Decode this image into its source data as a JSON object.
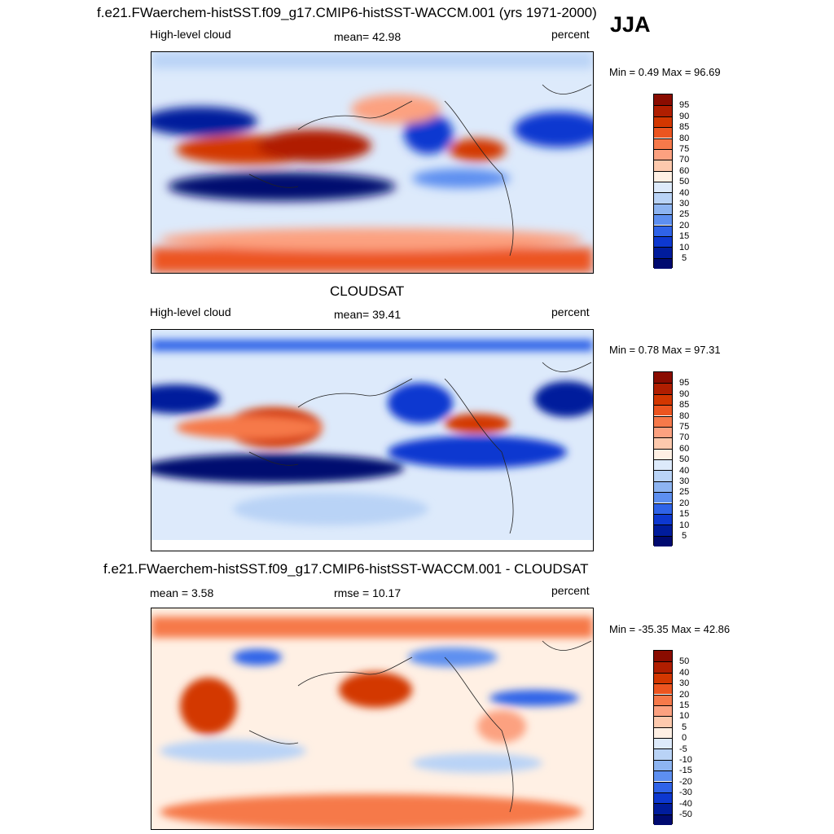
{
  "season": "JJA",
  "panels": [
    {
      "title": "f.e21.FWaerchem-histSST.f09_g17.CMIP6-histSST-WACCM.001 (yrs 1971-2000)",
      "left_label": "High-level cloud",
      "center_label": "mean=  42.98",
      "units": "percent",
      "minmax": "Min =   0.49 Max =  96.69",
      "colorbar_labels": [
        "95",
        "90",
        "85",
        "80",
        "75",
        "70",
        "60",
        "50",
        "40",
        "30",
        "25",
        "20",
        "15",
        "10",
        "5"
      ],
      "colorbar_colors": [
        "#8a0c00",
        "#b01e00",
        "#d33700",
        "#ec5520",
        "#f6794a",
        "#fca180",
        "#fdc9ad",
        "#fff0e4",
        "#ddeafb",
        "#b9d3f6",
        "#8db4f1",
        "#5d8ff0",
        "#2f63e8",
        "#0d38d0",
        "#001c9c",
        "#000a70"
      ]
    },
    {
      "title": "CLOUDSAT",
      "left_label": "High-level cloud",
      "center_label": "mean=  39.41",
      "units": "percent",
      "minmax": "Min =   0.78 Max =  97.31",
      "colorbar_labels": [
        "95",
        "90",
        "85",
        "80",
        "75",
        "70",
        "60",
        "50",
        "40",
        "30",
        "25",
        "20",
        "15",
        "10",
        "5"
      ],
      "colorbar_colors": [
        "#8a0c00",
        "#b01e00",
        "#d33700",
        "#ec5520",
        "#f6794a",
        "#fca180",
        "#fdc9ad",
        "#fff0e4",
        "#ddeafb",
        "#b9d3f6",
        "#8db4f1",
        "#5d8ff0",
        "#2f63e8",
        "#0d38d0",
        "#001c9c",
        "#000a70"
      ]
    },
    {
      "title": "f.e21.FWaerchem-histSST.f09_g17.CMIP6-histSST-WACCM.001 - CLOUDSAT",
      "left_label": "mean =   3.58",
      "center_label": "rmse =  10.17",
      "units": "percent",
      "minmax": "Min = -35.35 Max =  42.86",
      "colorbar_labels": [
        "50",
        "40",
        "30",
        "20",
        "15",
        "10",
        "5",
        "0",
        "-5",
        "-10",
        "-15",
        "-20",
        "-30",
        "-40",
        "-50"
      ],
      "colorbar_colors": [
        "#8a0c00",
        "#b01e00",
        "#d33700",
        "#ec5520",
        "#f6794a",
        "#fca180",
        "#fdc9ad",
        "#fff0e4",
        "#ddeafb",
        "#b9d3f6",
        "#8db4f1",
        "#5d8ff0",
        "#2f63e8",
        "#0d38d0",
        "#001c9c",
        "#000a70"
      ]
    }
  ]
}
